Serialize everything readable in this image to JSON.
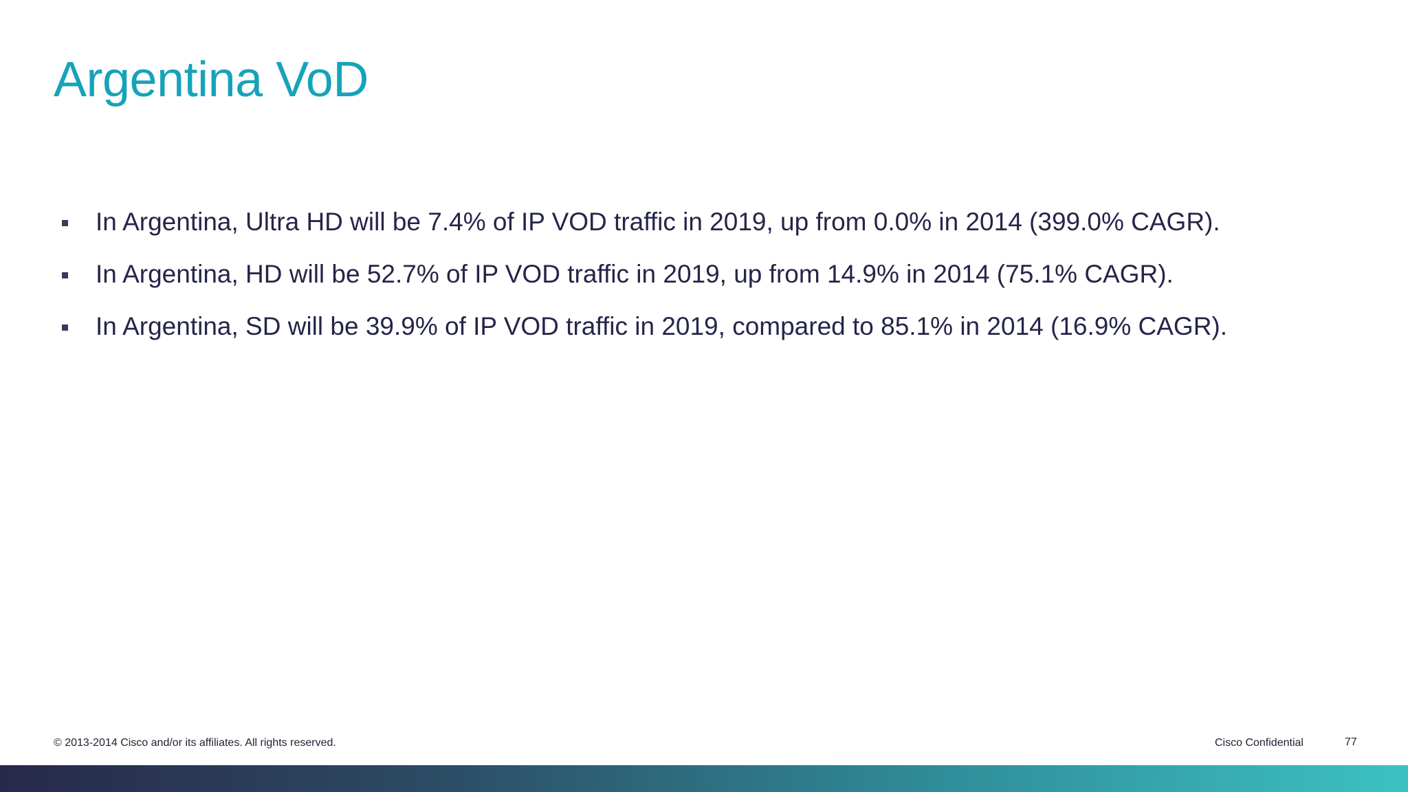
{
  "slide": {
    "title": "Argentina VoD",
    "bullets": [
      {
        "text": "In Argentina, Ultra HD will be 7.4% of IP VOD traffic in 2019, up from 0.0% in 2014 (399.0% CAGR)."
      },
      {
        "text": "In Argentina, HD will be 52.7% of IP VOD traffic in 2019, up from 14.9% in 2014 (75.1% CAGR)."
      },
      {
        "text": "In Argentina, SD will be 39.9% of IP VOD traffic in 2019, compared to 85.1% in 2014 (16.9% CAGR)."
      }
    ]
  },
  "footer": {
    "copyright": "© 2013-2014  Cisco and/or its affiliates. All rights reserved.",
    "confidential": "Cisco Confidential",
    "page_number": "77"
  },
  "colors": {
    "title": "#16a3b9",
    "body_text": "#25254a",
    "bar_start": "#27294a",
    "bar_end": "#3cc1c3"
  }
}
